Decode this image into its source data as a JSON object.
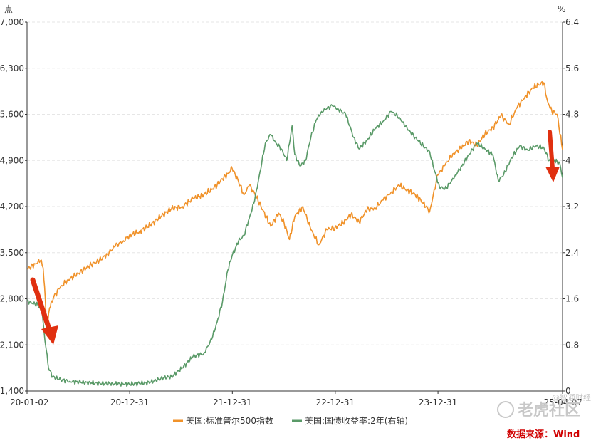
{
  "chart_data": {
    "type": "line",
    "left_axis": {
      "unit": "点",
      "min": 1400,
      "max": 7000,
      "ticks": [
        "1,400",
        "2,100",
        "2,800",
        "3,500",
        "4,200",
        "4,900",
        "5,600",
        "6,300",
        "7,000"
      ],
      "tick_values": [
        1400,
        2100,
        2800,
        3500,
        4200,
        4900,
        5600,
        6300,
        7000
      ]
    },
    "right_axis": {
      "unit": "%",
      "min": 0,
      "max": 6.4,
      "ticks": [
        "0",
        "0.8",
        "1.6",
        "2.4",
        "3.2",
        "4",
        "4.8",
        "5.6",
        "6.4"
      ],
      "tick_values": [
        0,
        0.8,
        1.6,
        2.4,
        3.2,
        4,
        4.8,
        5.6,
        6.4
      ]
    },
    "x_axis": {
      "ticks": [
        "20-01-02",
        "20-12-31",
        "21-12-31",
        "22-12-31",
        "23-12-31",
        "25-04-07"
      ],
      "tick_positions": [
        0,
        0.1916,
        0.3834,
        0.5756,
        0.7674,
        1.0
      ]
    },
    "grid": true,
    "legend_position": "bottom",
    "series": [
      {
        "name": "美国:标准普尔500指数",
        "color": "#f0922a",
        "axis": "left",
        "points": [
          [
            0.0,
            3250
          ],
          [
            0.015,
            3330
          ],
          [
            0.025,
            3380
          ],
          [
            0.03,
            3270
          ],
          [
            0.034,
            2800
          ],
          [
            0.037,
            2300
          ],
          [
            0.042,
            2660
          ],
          [
            0.05,
            2830
          ],
          [
            0.06,
            2950
          ],
          [
            0.075,
            3080
          ],
          [
            0.09,
            3150
          ],
          [
            0.105,
            3240
          ],
          [
            0.12,
            3320
          ],
          [
            0.135,
            3380
          ],
          [
            0.15,
            3480
          ],
          [
            0.165,
            3600
          ],
          [
            0.18,
            3680
          ],
          [
            0.191,
            3760
          ],
          [
            0.21,
            3820
          ],
          [
            0.23,
            3920
          ],
          [
            0.25,
            4050
          ],
          [
            0.27,
            4170
          ],
          [
            0.29,
            4200
          ],
          [
            0.31,
            4320
          ],
          [
            0.33,
            4380
          ],
          [
            0.345,
            4460
          ],
          [
            0.355,
            4530
          ],
          [
            0.365,
            4620
          ],
          [
            0.375,
            4700
          ],
          [
            0.383,
            4780
          ],
          [
            0.395,
            4580
          ],
          [
            0.405,
            4380
          ],
          [
            0.415,
            4520
          ],
          [
            0.425,
            4400
          ],
          [
            0.44,
            4150
          ],
          [
            0.455,
            3900
          ],
          [
            0.47,
            4100
          ],
          [
            0.48,
            3950
          ],
          [
            0.49,
            3700
          ],
          [
            0.5,
            4050
          ],
          [
            0.515,
            4200
          ],
          [
            0.53,
            3850
          ],
          [
            0.545,
            3620
          ],
          [
            0.56,
            3850
          ],
          [
            0.575,
            3880
          ],
          [
            0.59,
            3950
          ],
          [
            0.605,
            4080
          ],
          [
            0.62,
            3970
          ],
          [
            0.635,
            4150
          ],
          [
            0.65,
            4180
          ],
          [
            0.665,
            4300
          ],
          [
            0.68,
            4420
          ],
          [
            0.695,
            4520
          ],
          [
            0.71,
            4450
          ],
          [
            0.725,
            4380
          ],
          [
            0.74,
            4250
          ],
          [
            0.752,
            4130
          ],
          [
            0.767,
            4680
          ],
          [
            0.78,
            4820
          ],
          [
            0.795,
            5000
          ],
          [
            0.81,
            5080
          ],
          [
            0.825,
            5200
          ],
          [
            0.84,
            5130
          ],
          [
            0.855,
            5300
          ],
          [
            0.87,
            5400
          ],
          [
            0.885,
            5580
          ],
          [
            0.9,
            5450
          ],
          [
            0.915,
            5700
          ],
          [
            0.93,
            5870
          ],
          [
            0.945,
            6000
          ],
          [
            0.955,
            6050
          ],
          [
            0.965,
            6080
          ],
          [
            0.972,
            5800
          ],
          [
            0.98,
            5650
          ],
          [
            0.99,
            5600
          ],
          [
            1.0,
            5060
          ]
        ]
      },
      {
        "name": "美国:国债收益率:2年(右轴)",
        "color": "#5a9a68",
        "axis": "right",
        "points": [
          [
            0.0,
            1.56
          ],
          [
            0.01,
            1.52
          ],
          [
            0.02,
            1.5
          ],
          [
            0.028,
            1.38
          ],
          [
            0.032,
            1.0
          ],
          [
            0.036,
            0.7
          ],
          [
            0.04,
            0.4
          ],
          [
            0.048,
            0.25
          ],
          [
            0.06,
            0.2
          ],
          [
            0.08,
            0.17
          ],
          [
            0.1,
            0.15
          ],
          [
            0.12,
            0.14
          ],
          [
            0.14,
            0.13
          ],
          [
            0.16,
            0.13
          ],
          [
            0.18,
            0.12
          ],
          [
            0.191,
            0.12
          ],
          [
            0.21,
            0.13
          ],
          [
            0.23,
            0.15
          ],
          [
            0.25,
            0.22
          ],
          [
            0.27,
            0.25
          ],
          [
            0.29,
            0.4
          ],
          [
            0.31,
            0.6
          ],
          [
            0.33,
            0.65
          ],
          [
            0.345,
            0.9
          ],
          [
            0.355,
            1.2
          ],
          [
            0.365,
            1.55
          ],
          [
            0.375,
            2.1
          ],
          [
            0.383,
            2.35
          ],
          [
            0.395,
            2.6
          ],
          [
            0.405,
            2.7
          ],
          [
            0.415,
            3.0
          ],
          [
            0.425,
            3.3
          ],
          [
            0.435,
            3.8
          ],
          [
            0.445,
            4.3
          ],
          [
            0.455,
            4.45
          ],
          [
            0.465,
            4.3
          ],
          [
            0.475,
            4.2
          ],
          [
            0.485,
            4.0
          ],
          [
            0.495,
            4.6
          ],
          [
            0.5,
            4.1
          ],
          [
            0.51,
            3.9
          ],
          [
            0.52,
            4.0
          ],
          [
            0.53,
            4.4
          ],
          [
            0.54,
            4.7
          ],
          [
            0.55,
            4.85
          ],
          [
            0.56,
            4.9
          ],
          [
            0.57,
            4.95
          ],
          [
            0.58,
            4.9
          ],
          [
            0.595,
            4.8
          ],
          [
            0.61,
            4.4
          ],
          [
            0.62,
            4.2
          ],
          [
            0.635,
            4.35
          ],
          [
            0.65,
            4.55
          ],
          [
            0.665,
            4.68
          ],
          [
            0.68,
            4.85
          ],
          [
            0.695,
            4.75
          ],
          [
            0.71,
            4.55
          ],
          [
            0.725,
            4.4
          ],
          [
            0.74,
            4.25
          ],
          [
            0.752,
            4.15
          ],
          [
            0.76,
            3.85
          ],
          [
            0.77,
            3.55
          ],
          [
            0.78,
            3.5
          ],
          [
            0.79,
            3.6
          ],
          [
            0.8,
            3.75
          ],
          [
            0.812,
            3.9
          ],
          [
            0.825,
            4.1
          ],
          [
            0.84,
            4.3
          ],
          [
            0.855,
            4.2
          ],
          [
            0.87,
            4.1
          ],
          [
            0.88,
            3.65
          ],
          [
            0.89,
            3.75
          ],
          [
            0.905,
            4.05
          ],
          [
            0.92,
            4.25
          ],
          [
            0.935,
            4.18
          ],
          [
            0.95,
            4.25
          ],
          [
            0.965,
            4.22
          ],
          [
            0.975,
            4.0
          ],
          [
            0.985,
            4.0
          ],
          [
            0.995,
            3.95
          ],
          [
            1.0,
            3.7
          ]
        ]
      }
    ]
  },
  "source_label": "数据来源：Wind",
  "watermark": {
    "main": "老虎社区",
    "sub": "@智通财经"
  }
}
